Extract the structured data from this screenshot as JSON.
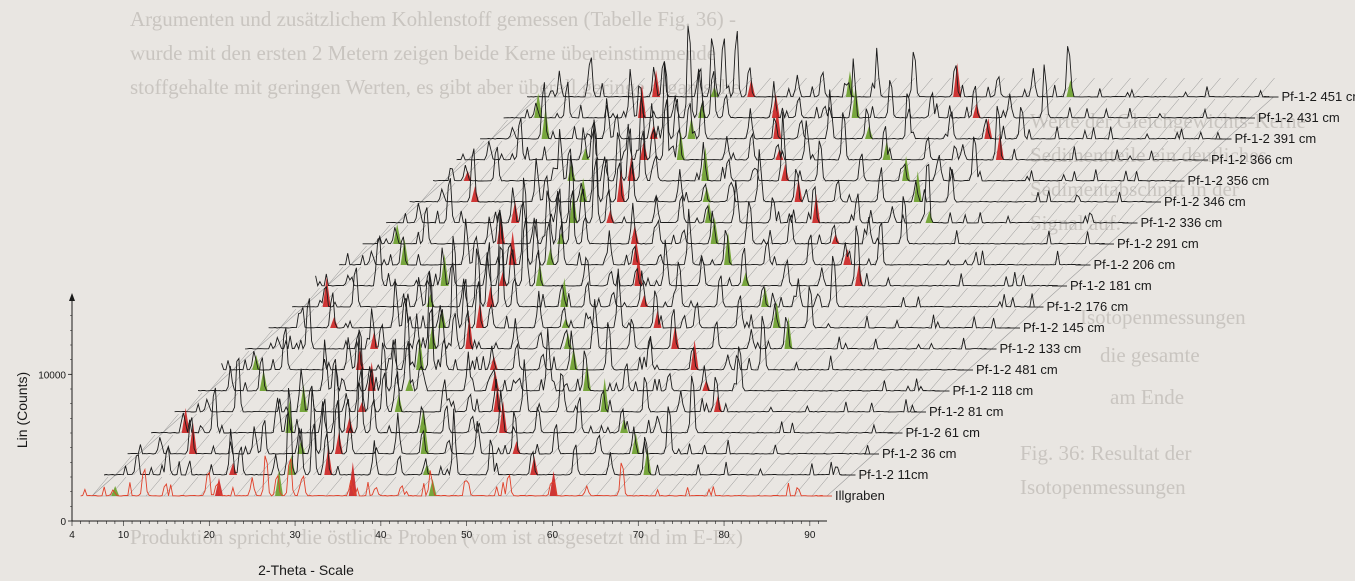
{
  "background_text": [
    "Argumenten und zusätzlichem Kohlenstoff gemessen (Tabelle Fig. 36) -",
    "wurde mit den ersten 2 Metern zeigen beide Kerne übereinstimmende",
    "stoffgehalte mit geringen Werten, es gibt aber überall geringe organische",
    "Werte der Gleichgewichts-Kerne",
    "Sedimentteile ein deutliches",
    "Sedimentabschnitt in der",
    "Signal auf.",
    "Isotopenmessungen",
    "die gesamte",
    "am Ende",
    "Fig. 36: Resultat der",
    "Isotopenmessungen",
    "Produktion spricht, die östliche Proben (vom ist ausgesetzt und im E-Ex)"
  ],
  "chart_data": {
    "type": "line",
    "subtype": "stacked 3D waterfall XRD diffractograms",
    "xlabel": "2-Theta - Scale",
    "ylabel": "Lin (Counts)",
    "xlim": [
      4,
      92
    ],
    "x_ticks": [
      4,
      10,
      20,
      30,
      40,
      50,
      60,
      70,
      80,
      90
    ],
    "ylim": [
      0,
      15000
    ],
    "y_ticks": [
      0,
      10000
    ],
    "series": [
      {
        "name": "Illgraben",
        "color": "#e0402a"
      },
      {
        "name": "Pf-1-2 11cm"
      },
      {
        "name": "Pf-1-2 36 cm"
      },
      {
        "name": "Pf-1-2 61 cm"
      },
      {
        "name": "Pf-1-2 81 cm"
      },
      {
        "name": "Pf-1-2 118 cm"
      },
      {
        "name": "Pf-1-2 481 cm"
      },
      {
        "name": "Pf-1-2 133 cm"
      },
      {
        "name": "Pf-1-2 145 cm"
      },
      {
        "name": "Pf-1-2 176 cm"
      },
      {
        "name": "Pf-1-2 181 cm"
      },
      {
        "name": "Pf-1-2 206 cm"
      },
      {
        "name": "Pf-1-2 291 cm"
      },
      {
        "name": "Pf-1-2 336 cm"
      },
      {
        "name": "Pf-1-2 346 cm"
      },
      {
        "name": "Pf-1-2 356 cm"
      },
      {
        "name": "Pf-1-2 366 cm"
      },
      {
        "name": "Pf-1-2 391 cm"
      },
      {
        "name": "Pf-1-2 431 cm"
      },
      {
        "name": "Pf-1-2 451 cm"
      }
    ],
    "main_peaks_2theta": [
      8.8,
      12.4,
      19.8,
      20.9,
      25.0,
      26.6,
      27.9,
      29.4,
      30.9,
      36.5,
      39.4,
      42.4,
      45.8,
      50.1,
      54.9,
      59.9,
      64.0,
      68.1
    ],
    "peak_fill_colors": [
      "#6a9f2a",
      "#d8d830",
      "#3050b0",
      "#cc2222",
      "#2a8a8a",
      "#7a2a8a"
    ],
    "grid": true,
    "legend": "labels at right end of each trace"
  }
}
